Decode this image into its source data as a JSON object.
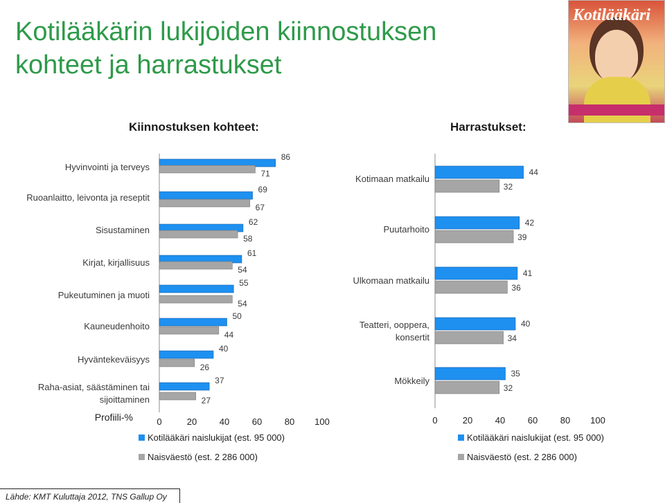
{
  "page": {
    "title": "Kotilääkärin lukijoiden kiinnostuksen kohteet ja harrastukset",
    "source": "Lähde: KMT Kuluttaja 2012, TNS Gallup Oy",
    "cover": {
      "masthead": "Kotilääkäri"
    }
  },
  "colors": {
    "title": "#2e9a4a",
    "series1": "#1e90f0",
    "series2": "#a6a6a6"
  },
  "chart_data": [
    {
      "type": "bar",
      "orientation": "horizontal",
      "title": "Kiinnostuksen kohteet:",
      "xlabel": "Profiili-%",
      "xlim": [
        0,
        100
      ],
      "xticks": [
        "0",
        "20",
        "40",
        "60",
        "80",
        "100"
      ],
      "categories": [
        "Hyvinvointi ja terveys",
        "Ruoanlaitto, leivonta ja reseptit",
        "Sisustaminen",
        "Kirjat, kirjallisuus",
        "Pukeutuminen ja muoti",
        "Kauneudenhoito",
        "Hyväntekeväisyys",
        "Raha-asiat, säästäminen tai sijoittaminen"
      ],
      "series": [
        {
          "name": "Kotilääkäri naislukijat (est. 95 000)",
          "values": [
            86,
            69,
            62,
            61,
            55,
            50,
            40,
            37
          ]
        },
        {
          "name": "Naisväestö (est. 2 286 000)",
          "values": [
            71,
            67,
            58,
            54,
            54,
            44,
            26,
            27
          ]
        }
      ]
    },
    {
      "type": "bar",
      "orientation": "horizontal",
      "title": "Harrastukset:",
      "xlabel": "",
      "xlim": [
        0,
        100
      ],
      "xticks": [
        "0",
        "20",
        "40",
        "60",
        "80",
        "100"
      ],
      "categories": [
        "Kotimaan matkailu",
        "Puutarhoito",
        "Ulkomaan matkailu",
        "Teatteri, ooppera, konsertit",
        "Mökkeily"
      ],
      "series": [
        {
          "name": "Kotilääkäri naislukijat (est. 95 000)",
          "values": [
            44,
            42,
            41,
            40,
            35
          ]
        },
        {
          "name": "Naisväestö (est. 2 286 000)",
          "values": [
            32,
            39,
            36,
            34,
            32
          ]
        }
      ]
    }
  ]
}
